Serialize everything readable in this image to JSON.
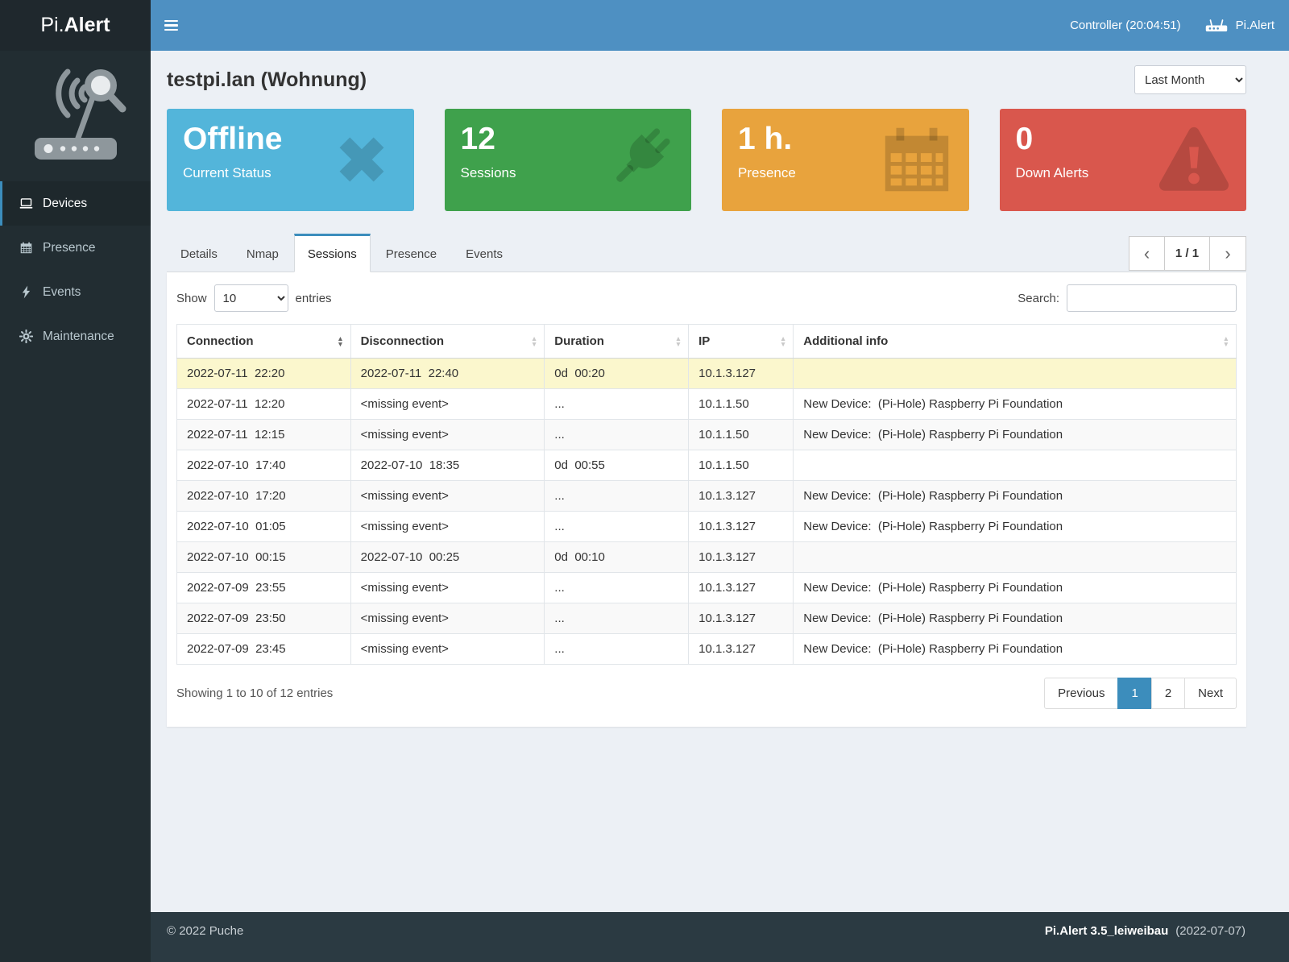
{
  "topbar": {
    "brand_prefix": "Pi.",
    "brand_suffix": "Alert",
    "controller": "Controller (20:04:51)",
    "user_label": "Pi.Alert"
  },
  "sidebar": {
    "items": [
      {
        "label": "Devices",
        "icon": "laptop-icon",
        "active": true
      },
      {
        "label": "Presence",
        "icon": "calendar-icon",
        "active": false
      },
      {
        "label": "Events",
        "icon": "bolt-icon",
        "active": false
      },
      {
        "label": "Maintenance",
        "icon": "gear-icon",
        "active": false
      }
    ]
  },
  "page": {
    "title": "testpi.lan (Wohnung)",
    "period_options": [
      "Last Month"
    ],
    "period_selected": "Last Month"
  },
  "infoboxes": [
    {
      "value": "Offline",
      "label": "Current Status",
      "icon": "x-icon",
      "color": "#53b5da"
    },
    {
      "value": "12",
      "label": "Sessions",
      "icon": "plug-icon",
      "color": "#3fa14c"
    },
    {
      "value": "1 h.",
      "label": "Presence",
      "icon": "calendar-icon",
      "color": "#e8a33d"
    },
    {
      "value": "0",
      "label": "Down Alerts",
      "icon": "warning-icon",
      "color": "#d9574d"
    }
  ],
  "tabs": [
    {
      "label": "Details",
      "active": false
    },
    {
      "label": "Nmap",
      "active": false
    },
    {
      "label": "Sessions",
      "active": true
    },
    {
      "label": "Presence",
      "active": false
    },
    {
      "label": "Events",
      "active": false
    }
  ],
  "pager": {
    "label": "1 / 1"
  },
  "table": {
    "show_label": "Show",
    "entries_label": "entries",
    "length_options": [
      "10"
    ],
    "length_selected": "10",
    "search_label": "Search:",
    "columns": [
      {
        "label": "Connection",
        "sorted": true
      },
      {
        "label": "Disconnection",
        "sorted": false
      },
      {
        "label": "Duration",
        "sorted": false
      },
      {
        "label": "IP",
        "sorted": false
      },
      {
        "label": "Additional info",
        "sorted": false
      }
    ],
    "rows": [
      {
        "connection": "2022-07-11  22:20",
        "disconnection": "2022-07-11  22:40",
        "duration": "0d  00:20",
        "ip": "10.1.3.127",
        "additional_info": "",
        "highlight": true
      },
      {
        "connection": "2022-07-11  12:20",
        "disconnection": "<missing event>",
        "duration": "...",
        "ip": "10.1.1.50",
        "additional_info": "New Device:  (Pi-Hole) Raspberry Pi Foundation"
      },
      {
        "connection": "2022-07-11  12:15",
        "disconnection": "<missing event>",
        "duration": "...",
        "ip": "10.1.1.50",
        "additional_info": "New Device:  (Pi-Hole) Raspberry Pi Foundation"
      },
      {
        "connection": "2022-07-10  17:40",
        "disconnection": "2022-07-10  18:35",
        "duration": "0d  00:55",
        "ip": "10.1.1.50",
        "additional_info": ""
      },
      {
        "connection": "2022-07-10  17:20",
        "disconnection": "<missing event>",
        "duration": "...",
        "ip": "10.1.3.127",
        "additional_info": "New Device:  (Pi-Hole) Raspberry Pi Foundation"
      },
      {
        "connection": "2022-07-10  01:05",
        "disconnection": "<missing event>",
        "duration": "...",
        "ip": "10.1.3.127",
        "additional_info": "New Device:  (Pi-Hole) Raspberry Pi Foundation"
      },
      {
        "connection": "2022-07-10  00:15",
        "disconnection": "2022-07-10  00:25",
        "duration": "0d  00:10",
        "ip": "10.1.3.127",
        "additional_info": ""
      },
      {
        "connection": "2022-07-09  23:55",
        "disconnection": "<missing event>",
        "duration": "...",
        "ip": "10.1.3.127",
        "additional_info": "New Device:  (Pi-Hole) Raspberry Pi Foundation"
      },
      {
        "connection": "2022-07-09  23:50",
        "disconnection": "<missing event>",
        "duration": "...",
        "ip": "10.1.3.127",
        "additional_info": "New Device:  (Pi-Hole) Raspberry Pi Foundation"
      },
      {
        "connection": "2022-07-09  23:45",
        "disconnection": "<missing event>",
        "duration": "...",
        "ip": "10.1.3.127",
        "additional_info": "New Device:  (Pi-Hole) Raspberry Pi Foundation"
      }
    ],
    "summary": "Showing 1 to 10 of 12 entries",
    "pagination": {
      "previous": "Previous",
      "pages": [
        "1",
        "2"
      ],
      "active": "1",
      "next": "Next"
    }
  },
  "footer": {
    "copyright": "© 2022 Puche",
    "version": "Pi.Alert  3.5_leiweibau",
    "date": "(2022-07-07)"
  }
}
